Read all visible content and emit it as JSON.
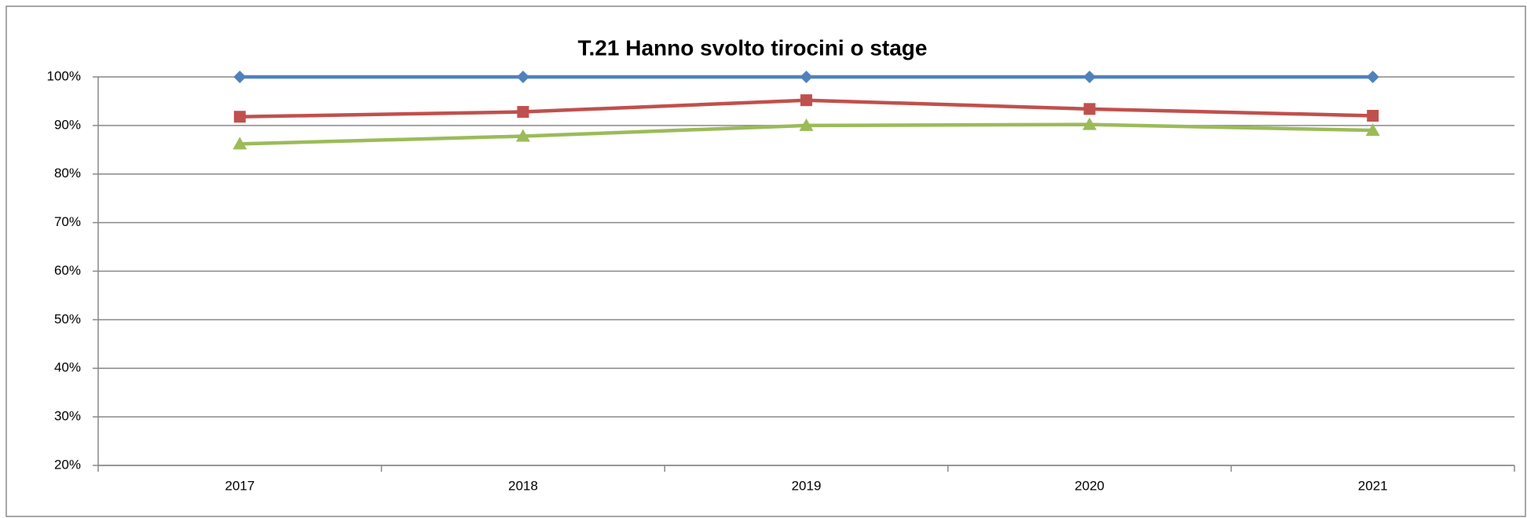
{
  "chart_data": {
    "type": "line",
    "title": "T.21 Hanno svolto tirocini o stage",
    "categories": [
      "2017",
      "2018",
      "2019",
      "2020",
      "2021"
    ],
    "series": [
      {
        "color": "#4f81bd",
        "marker": "diamond",
        "values": [
          100,
          100,
          100,
          100,
          100
        ]
      },
      {
        "color": "#c0504d",
        "marker": "square",
        "values": [
          91.8,
          92.8,
          95.2,
          93.4,
          92.0
        ]
      },
      {
        "color": "#9bbb59",
        "marker": "triangle",
        "values": [
          86.2,
          87.8,
          90.0,
          90.2,
          89.0
        ]
      }
    ],
    "ylim": [
      20,
      100
    ],
    "yticks": [
      {
        "value": 20,
        "label": "20%"
      },
      {
        "value": 30,
        "label": "30%"
      },
      {
        "value": 40,
        "label": "40%"
      },
      {
        "value": 50,
        "label": "50%"
      },
      {
        "value": 60,
        "label": "60%"
      },
      {
        "value": 70,
        "label": "70%"
      },
      {
        "value": 80,
        "label": "80%"
      },
      {
        "value": 90,
        "label": "90%"
      },
      {
        "value": 100,
        "label": "100%"
      }
    ],
    "grid": true
  }
}
